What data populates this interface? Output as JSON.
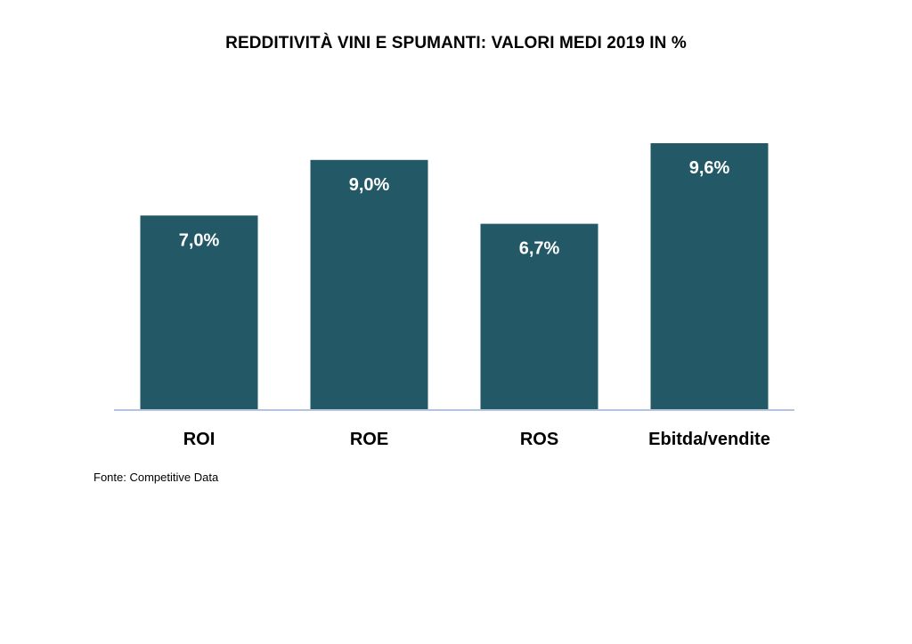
{
  "title": "REDDITIVITÀ VINI E SPUMANTI: VALORI MEDI 2019 IN %",
  "source_note": "Fonte: Competitive Data",
  "colors": {
    "bar": "#235967",
    "axis": "#b4c4dc",
    "label_inside": "#ffffff",
    "text": "#000000"
  },
  "chart_data": {
    "type": "bar",
    "title": "REDDITIVITÀ VINI E SPUMANTI: VALORI MEDI 2019 IN %",
    "categories": [
      "ROI",
      "ROE",
      "ROS",
      "Ebitda/vendite"
    ],
    "values": [
      7.0,
      9.0,
      6.7,
      9.6
    ],
    "data_labels": [
      "7,0%",
      "9,0%",
      "6,7%",
      "9,6%"
    ],
    "xlabel": "",
    "ylabel": "",
    "ylim": [
      0,
      10
    ],
    "grid": false,
    "legend": "none",
    "value_axis_shown": false
  }
}
